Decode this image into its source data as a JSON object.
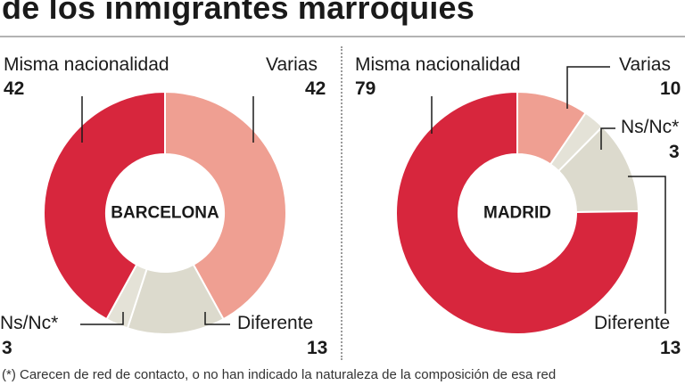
{
  "title": "de los inmigrantes marroquíes",
  "footnote": "(*) Carecen de red de contacto, o no han indicado la naturaleza de la composición de esa red",
  "colors": {
    "misma": "#d7263d",
    "varias": "#ef9f92",
    "nsnc": "#e4e2d7",
    "diferente": "#dcdacd"
  },
  "chart_data": [
    {
      "type": "pie",
      "center_label": "BARCELONA",
      "slices": [
        {
          "label": "Varias",
          "value": 42
        },
        {
          "label": "Diferente",
          "value": 13
        },
        {
          "label": "Ns/Nc*",
          "value": 3
        },
        {
          "label": "Misma nacionalidad",
          "value": 42
        }
      ]
    },
    {
      "type": "pie",
      "center_label": "MADRID",
      "slices": [
        {
          "label": "Varias",
          "value": 10
        },
        {
          "label": "Ns/Nc*",
          "value": 3
        },
        {
          "label": "Diferente",
          "value": 13
        },
        {
          "label": "Misma nacionalidad",
          "value": 79
        }
      ]
    }
  ]
}
